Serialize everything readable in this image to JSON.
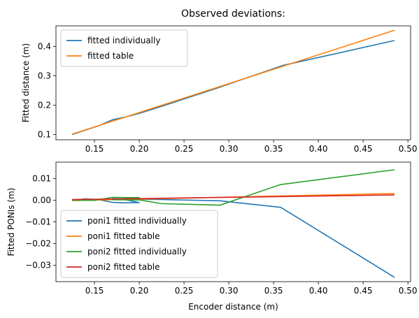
{
  "chart_data": [
    {
      "type": "line",
      "title": "Observed deviations:",
      "xlabel": "",
      "ylabel": "Fitted distance (m)",
      "xlim": [
        0.107,
        0.503
      ],
      "ylim": [
        0.082,
        0.47
      ],
      "xticks": [
        0.15,
        0.2,
        0.25,
        0.3,
        0.35,
        0.4,
        0.45,
        0.5
      ],
      "xtick_labels": [
        "0.15",
        "0.20",
        "0.25",
        "0.30",
        "0.35",
        "0.40",
        "0.45",
        "0.50"
      ],
      "yticks": [
        0.1,
        0.2,
        0.3,
        0.4
      ],
      "ytick_labels": [
        "0.1",
        "0.2",
        "0.3",
        "0.4"
      ],
      "grid": false,
      "legend": "top-left",
      "series": [
        {
          "name": "fitted individually",
          "color": "#1f77b4",
          "x": [
            0.125,
            0.14,
            0.155,
            0.17,
            0.185,
            0.2,
            0.225,
            0.29,
            0.36,
            0.485
          ],
          "y": [
            0.1,
            0.115,
            0.13,
            0.15,
            0.16,
            0.172,
            0.196,
            0.261,
            0.335,
            0.42
          ]
        },
        {
          "name": "fitted table",
          "color": "#ff7f0e",
          "x": [
            0.125,
            0.485
          ],
          "y": [
            0.101,
            0.455
          ]
        }
      ]
    },
    {
      "type": "line",
      "title": "",
      "xlabel": "Encoder distance (m)",
      "ylabel": "Fitted PONIs (m)",
      "xlim": [
        0.107,
        0.503
      ],
      "ylim": [
        -0.0375,
        0.0175
      ],
      "xticks": [
        0.15,
        0.2,
        0.25,
        0.3,
        0.35,
        0.4,
        0.45,
        0.5
      ],
      "xtick_labels": [
        "0.15",
        "0.20",
        "0.25",
        "0.30",
        "0.35",
        "0.40",
        "0.45",
        "0.50"
      ],
      "yticks": [
        -0.03,
        -0.02,
        -0.01,
        0.0,
        0.01
      ],
      "ytick_labels": [
        "−0.03",
        "−0.02",
        "−0.01",
        "0.00",
        "0.01"
      ],
      "grid": false,
      "legend": "bottom-left",
      "series": [
        {
          "name": "poni1 fitted individually",
          "color": "#1f77b4",
          "x": [
            0.125,
            0.14,
            0.155,
            0.17,
            0.185,
            0.2,
            0.185,
            0.17,
            0.2,
            0.225,
            0.29,
            0.358,
            0.485
          ],
          "y": [
            0.0,
            0.0006,
            0.0002,
            -0.001,
            -0.0012,
            -0.0011,
            0.0002,
            0.0007,
            0.0004,
            0.0003,
            -0.0003,
            -0.0033,
            -0.0355
          ]
        },
        {
          "name": "poni1 fitted table",
          "color": "#ff7f0e",
          "x": [
            0.125,
            0.485
          ],
          "y": [
            -0.0002,
            0.0031
          ]
        },
        {
          "name": "poni2 fitted individually",
          "color": "#2ca02c",
          "x": [
            0.125,
            0.15,
            0.17,
            0.185,
            0.2,
            0.185,
            0.17,
            0.2,
            0.225,
            0.29,
            0.358,
            0.485
          ],
          "y": [
            0.0,
            -0.0001,
            0.0013,
            0.0012,
            0.0012,
            0.0006,
            0.0002,
            0.0001,
            -0.0016,
            -0.0023,
            0.0072,
            0.014
          ]
        },
        {
          "name": "poni2 fitted table",
          "color": "#d62728",
          "x": [
            0.125,
            0.485
          ],
          "y": [
            0.0003,
            0.0024
          ]
        }
      ]
    }
  ]
}
